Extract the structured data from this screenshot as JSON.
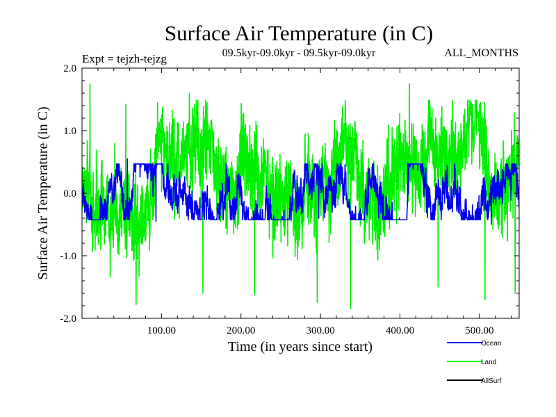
{
  "chart_data": {
    "type": "line",
    "title": "Surface Air Temperature (in C)",
    "subtitle_left": "Expt = tejzh-tejzg",
    "subtitle_center": "09.5kyr-09.0kyr - 09.5kyr-09.0kyr",
    "subtitle_right": "ALL_MONTHS",
    "xlabel": "Time (in years since start)",
    "ylabel": "Surface Air Temperature (in C)",
    "xlim": [
      0,
      550
    ],
    "ylim": [
      -2.0,
      2.0
    ],
    "x_ticks": [
      100,
      200,
      300,
      400,
      500
    ],
    "x_tick_labels": [
      "100.00",
      "200.00",
      "300.00",
      "400.00",
      "500.00"
    ],
    "y_ticks": [
      -2.0,
      -1.0,
      0.0,
      1.0,
      2.0
    ],
    "y_tick_labels": [
      "-2.0",
      "-1.0",
      "0.0",
      "1.0",
      "2.0"
    ],
    "series": [
      {
        "name": "Land",
        "color": "#00ee00",
        "n_points": 2200,
        "seed": 7,
        "amplitude": 0.33,
        "approx_min": -1.85,
        "approx_max": 1.75,
        "peaks": [
          [
            10,
            1.75
          ],
          [
            55,
            1.42
          ],
          [
            95,
            1.45
          ],
          [
            135,
            1.6
          ],
          [
            412,
            1.75
          ],
          [
            445,
            1.2
          ]
        ],
        "troughs": [
          [
            68,
            -1.78
          ],
          [
            152,
            -1.6
          ],
          [
            217,
            -1.62
          ],
          [
            296,
            -1.75
          ],
          [
            338,
            -1.85
          ],
          [
            448,
            -1.5
          ],
          [
            507,
            -1.7
          ],
          [
            545,
            -1.6
          ]
        ]
      },
      {
        "name": "Ocean",
        "color": "#0000ee",
        "n_points": 2200,
        "seed": 19,
        "amplitude": 0.12,
        "approx_min": -0.5,
        "approx_max": 0.55,
        "peaks": [
          [
            57,
            0.55
          ],
          [
            410,
            0.48
          ]
        ],
        "troughs": [
          [
            93,
            -0.45
          ],
          [
            298,
            -0.4
          ],
          [
            515,
            -0.5
          ]
        ]
      },
      {
        "name": "AllSurf",
        "color": "#000000",
        "n_points": 0
      }
    ],
    "legend_position": "bottom-right"
  }
}
